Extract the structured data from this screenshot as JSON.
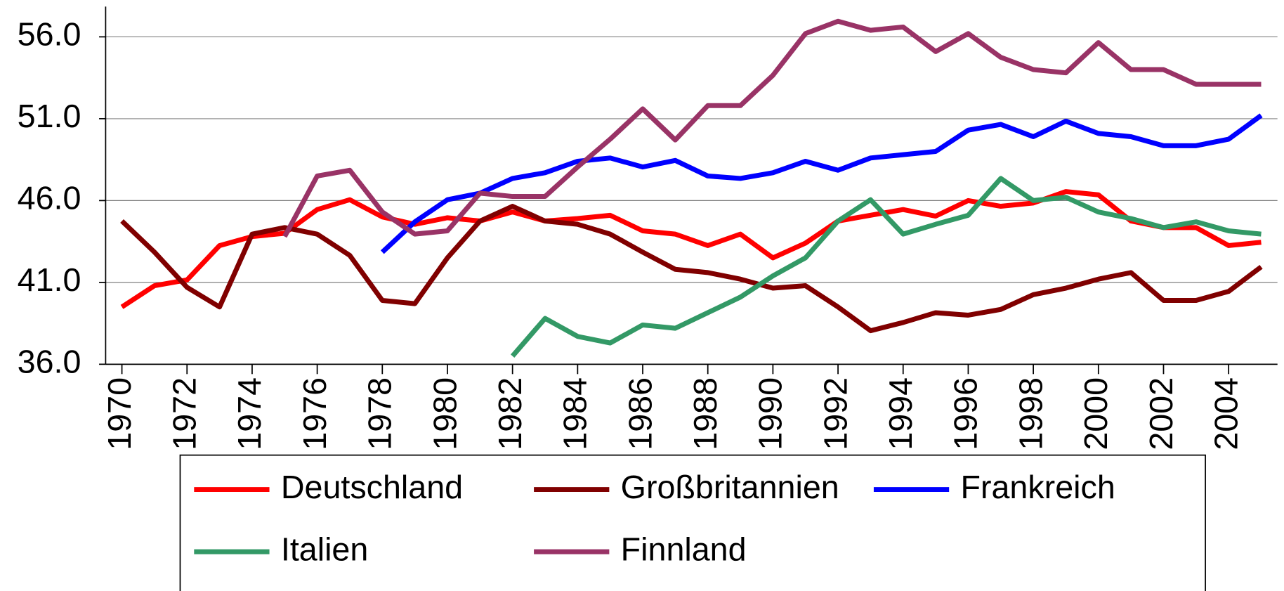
{
  "chart_data": {
    "type": "line",
    "x": [
      1970,
      1971,
      1972,
      1973,
      1974,
      1975,
      1976,
      1977,
      1978,
      1979,
      1980,
      1981,
      1982,
      1983,
      1984,
      1985,
      1986,
      1987,
      1988,
      1989,
      1990,
      1991,
      1992,
      1993,
      1994,
      1995,
      1996,
      1997,
      1998,
      1999,
      2000,
      2001,
      2002,
      2003,
      2004,
      2005
    ],
    "xlim": [
      1969.5,
      2005.5
    ],
    "xticks": [
      1970,
      1972,
      1974,
      1976,
      1978,
      1980,
      1982,
      1984,
      1986,
      1988,
      1990,
      1992,
      1994,
      1996,
      1998,
      2000,
      2002,
      2004
    ],
    "ylim": [
      36,
      57.85
    ],
    "yticks": [
      {
        "value": 36,
        "label": "36.0"
      },
      {
        "value": 41,
        "label": "41.0"
      },
      {
        "value": 46,
        "label": "46.0"
      },
      {
        "value": 51,
        "label": "51.0"
      },
      {
        "value": 56,
        "label": "56.0"
      }
    ],
    "grid": true,
    "legend": "bottom",
    "series": [
      {
        "name": "Deutschland",
        "color": "#ff0000",
        "values": [
          39.5,
          40.8,
          41.15,
          43.25,
          43.8,
          44.0,
          45.45,
          46.05,
          45.0,
          44.55,
          44.95,
          44.75,
          45.3,
          44.75,
          44.9,
          45.1,
          44.15,
          43.95,
          43.25,
          43.95,
          42.5,
          43.4,
          44.75,
          45.1,
          45.45,
          45.05,
          46.0,
          45.65,
          45.85,
          46.55,
          46.35,
          44.75,
          44.35,
          44.35,
          43.25,
          43.45
        ]
      },
      {
        "name": "Großbritannien",
        "color": "#800000",
        "values": [
          44.75,
          42.85,
          40.7,
          39.5,
          43.95,
          44.35,
          43.95,
          42.65,
          39.9,
          39.7,
          42.5,
          44.75,
          45.65,
          44.75,
          44.55,
          43.95,
          42.85,
          41.8,
          41.6,
          41.2,
          40.65,
          40.8,
          39.5,
          38.05,
          38.55,
          39.15,
          39.0,
          39.35,
          40.25,
          40.65,
          41.2,
          41.6,
          39.9,
          39.9,
          40.45,
          41.95
        ]
      },
      {
        "name": "Frankreich",
        "color": "#0000ff",
        "values": [
          null,
          null,
          null,
          null,
          null,
          null,
          null,
          null,
          42.85,
          44.7,
          46.05,
          46.45,
          47.35,
          47.7,
          48.4,
          48.6,
          48.05,
          48.45,
          47.5,
          47.35,
          47.7,
          48.4,
          47.85,
          48.6,
          48.8,
          49.0,
          50.3,
          50.65,
          49.9,
          50.85,
          50.1,
          49.9,
          49.35,
          49.35,
          49.75,
          51.2
        ]
      },
      {
        "name": "Italien",
        "color": "#339966",
        "values": [
          null,
          null,
          null,
          null,
          null,
          null,
          null,
          null,
          null,
          null,
          null,
          null,
          36.5,
          38.8,
          37.7,
          37.3,
          38.4,
          38.2,
          39.15,
          40.1,
          41.4,
          42.5,
          44.75,
          46.05,
          43.95,
          44.55,
          45.1,
          47.35,
          46.0,
          46.2,
          45.3,
          44.9,
          44.35,
          44.7,
          44.15,
          43.95
        ]
      },
      {
        "name": "Finnland",
        "color": "#993366",
        "values": [
          null,
          null,
          null,
          null,
          null,
          43.8,
          47.5,
          47.85,
          45.3,
          43.95,
          44.15,
          46.45,
          46.25,
          46.25,
          48.05,
          49.75,
          51.6,
          49.7,
          51.8,
          51.8,
          53.65,
          56.2,
          56.95,
          56.4,
          56.6,
          55.1,
          56.2,
          54.75,
          54.0,
          53.8,
          55.65,
          54.0,
          54.0,
          53.1,
          53.1,
          53.1
        ]
      }
    ]
  }
}
